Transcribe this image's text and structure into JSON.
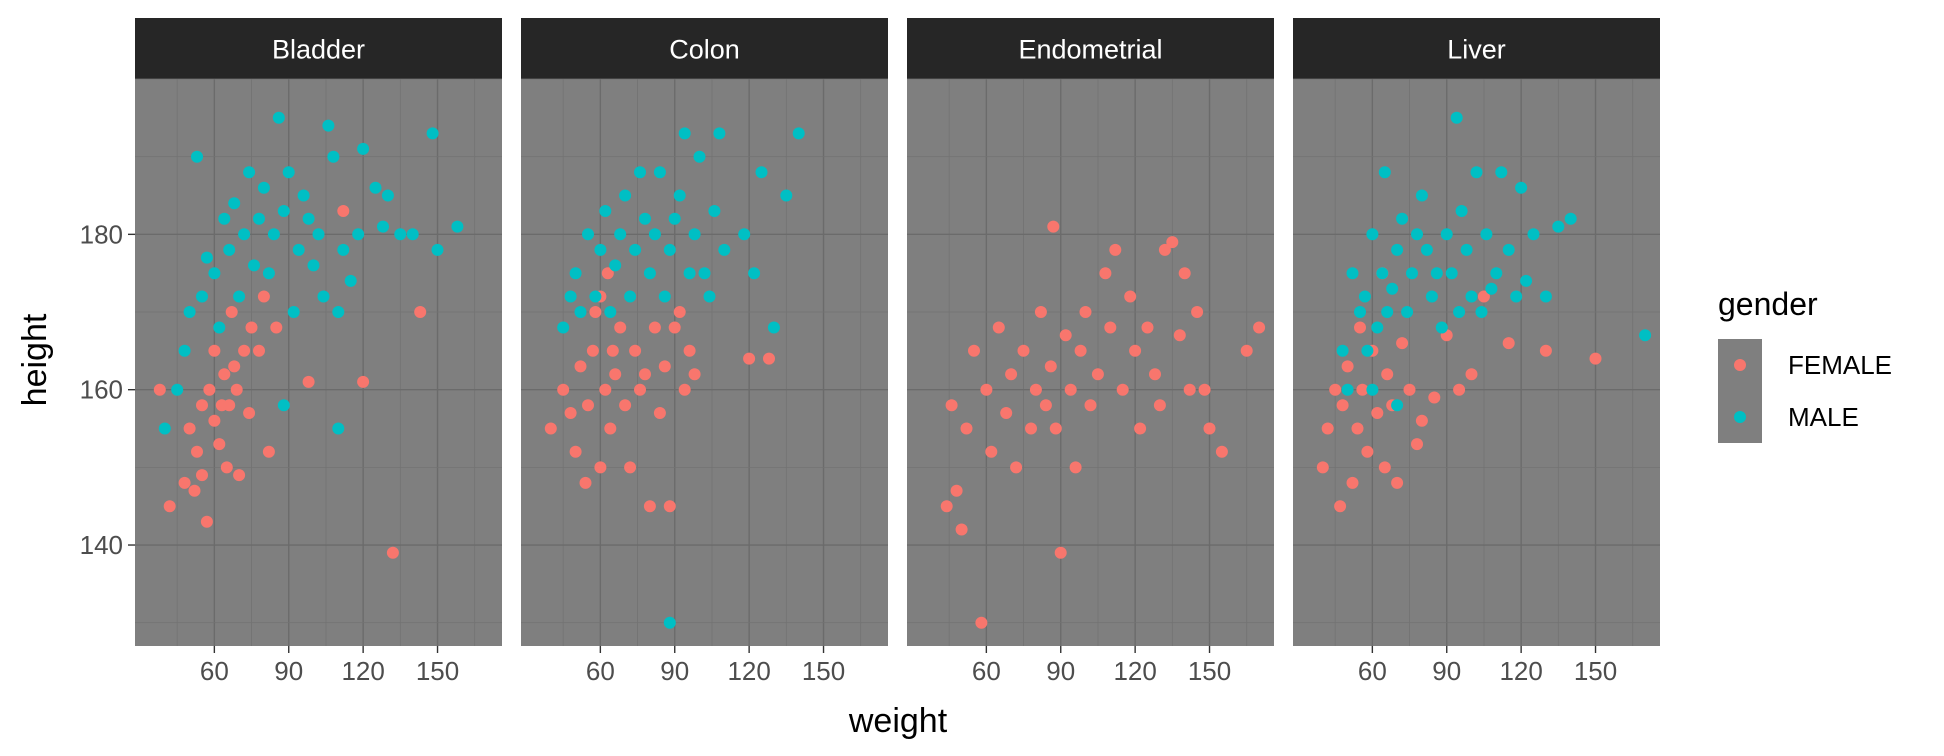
{
  "chart_data": {
    "type": "scatter",
    "facets": [
      "Bladder",
      "Colon",
      "Endometrial",
      "Liver"
    ],
    "xlabel": "weight",
    "ylabel": "height",
    "x_ticks": [
      60,
      90,
      120,
      150
    ],
    "y_ticks": [
      140,
      160,
      180
    ],
    "xlim": [
      28,
      176
    ],
    "ylim": [
      127,
      200
    ],
    "grid": true,
    "legend": {
      "title": "gender",
      "position": "right",
      "entries": [
        {
          "label": "FEMALE",
          "color": "#F8766D"
        },
        {
          "label": "MALE",
          "color": "#00BFC4"
        }
      ]
    },
    "series": [
      {
        "name": "FEMALE",
        "color": "#F8766D",
        "points": {
          "Bladder": [
            [
              38,
              160
            ],
            [
              42,
              145
            ],
            [
              48,
              148
            ],
            [
              50,
              155
            ],
            [
              52,
              147
            ],
            [
              53,
              152
            ],
            [
              55,
              158
            ],
            [
              55,
              149
            ],
            [
              57,
              143
            ],
            [
              58,
              160
            ],
            [
              60,
              156
            ],
            [
              60,
              165
            ],
            [
              62,
              153
            ],
            [
              63,
              158
            ],
            [
              64,
              162
            ],
            [
              65,
              150
            ],
            [
              66,
              158
            ],
            [
              67,
              170
            ],
            [
              68,
              163
            ],
            [
              69,
              160
            ],
            [
              70,
              149
            ],
            [
              72,
              165
            ],
            [
              74,
              157
            ],
            [
              75,
              168
            ],
            [
              78,
              165
            ],
            [
              80,
              172
            ],
            [
              82,
              152
            ],
            [
              85,
              168
            ],
            [
              98,
              161
            ],
            [
              112,
              183
            ],
            [
              120,
              161
            ],
            [
              132,
              139
            ],
            [
              143,
              170
            ]
          ],
          "Colon": [
            [
              40,
              155
            ],
            [
              45,
              160
            ],
            [
              48,
              157
            ],
            [
              50,
              152
            ],
            [
              52,
              163
            ],
            [
              54,
              148
            ],
            [
              55,
              158
            ],
            [
              57,
              165
            ],
            [
              58,
              170
            ],
            [
              60,
              150
            ],
            [
              60,
              172
            ],
            [
              62,
              160
            ],
            [
              63,
              175
            ],
            [
              64,
              155
            ],
            [
              65,
              165
            ],
            [
              66,
              162
            ],
            [
              68,
              168
            ],
            [
              70,
              158
            ],
            [
              72,
              150
            ],
            [
              74,
              165
            ],
            [
              76,
              160
            ],
            [
              78,
              162
            ],
            [
              80,
              145
            ],
            [
              82,
              168
            ],
            [
              84,
              157
            ],
            [
              86,
              163
            ],
            [
              88,
              145
            ],
            [
              90,
              168
            ],
            [
              92,
              170
            ],
            [
              94,
              160
            ],
            [
              96,
              165
            ],
            [
              98,
              162
            ],
            [
              120,
              164
            ],
            [
              128,
              164
            ]
          ],
          "Endometrial": [
            [
              44,
              145
            ],
            [
              46,
              158
            ],
            [
              48,
              147
            ],
            [
              50,
              142
            ],
            [
              52,
              155
            ],
            [
              55,
              165
            ],
            [
              58,
              130
            ],
            [
              60,
              160
            ],
            [
              62,
              152
            ],
            [
              65,
              168
            ],
            [
              68,
              157
            ],
            [
              70,
              162
            ],
            [
              72,
              150
            ],
            [
              75,
              165
            ],
            [
              78,
              155
            ],
            [
              80,
              160
            ],
            [
              82,
              170
            ],
            [
              84,
              158
            ],
            [
              86,
              163
            ],
            [
              87,
              181
            ],
            [
              88,
              155
            ],
            [
              90,
              139
            ],
            [
              92,
              167
            ],
            [
              94,
              160
            ],
            [
              96,
              150
            ],
            [
              98,
              165
            ],
            [
              100,
              170
            ],
            [
              102,
              158
            ],
            [
              105,
              162
            ],
            [
              108,
              175
            ],
            [
              110,
              168
            ],
            [
              112,
              178
            ],
            [
              115,
              160
            ],
            [
              118,
              172
            ],
            [
              120,
              165
            ],
            [
              122,
              155
            ],
            [
              125,
              168
            ],
            [
              128,
              162
            ],
            [
              130,
              158
            ],
            [
              132,
              178
            ],
            [
              135,
              179
            ],
            [
              138,
              167
            ],
            [
              140,
              175
            ],
            [
              142,
              160
            ],
            [
              145,
              170
            ],
            [
              148,
              160
            ],
            [
              150,
              155
            ],
            [
              155,
              152
            ],
            [
              165,
              165
            ],
            [
              170,
              168
            ]
          ],
          "Liver": [
            [
              40,
              150
            ],
            [
              42,
              155
            ],
            [
              45,
              160
            ],
            [
              47,
              145
            ],
            [
              48,
              158
            ],
            [
              50,
              163
            ],
            [
              52,
              148
            ],
            [
              54,
              155
            ],
            [
              55,
              168
            ],
            [
              56,
              160
            ],
            [
              58,
              152
            ],
            [
              60,
              165
            ],
            [
              62,
              157
            ],
            [
              64,
              175
            ],
            [
              65,
              150
            ],
            [
              66,
              162
            ],
            [
              68,
              158
            ],
            [
              70,
              148
            ],
            [
              72,
              166
            ],
            [
              75,
              160
            ],
            [
              78,
              153
            ],
            [
              80,
              156
            ],
            [
              85,
              159
            ],
            [
              90,
              167
            ],
            [
              95,
              160
            ],
            [
              100,
              162
            ],
            [
              105,
              172
            ],
            [
              115,
              166
            ],
            [
              130,
              165
            ],
            [
              150,
              164
            ]
          ]
        }
      },
      {
        "name": "MALE",
        "color": "#00BFC4",
        "points": {
          "Bladder": [
            [
              40,
              155
            ],
            [
              45,
              160
            ],
            [
              48,
              165
            ],
            [
              50,
              170
            ],
            [
              53,
              190
            ],
            [
              55,
              172
            ],
            [
              57,
              177
            ],
            [
              60,
              175
            ],
            [
              62,
              168
            ],
            [
              64,
              182
            ],
            [
              66,
              178
            ],
            [
              68,
              184
            ],
            [
              70,
              172
            ],
            [
              72,
              180
            ],
            [
              74,
              188
            ],
            [
              76,
              176
            ],
            [
              78,
              182
            ],
            [
              80,
              186
            ],
            [
              82,
              175
            ],
            [
              84,
              180
            ],
            [
              86,
              195
            ],
            [
              88,
              183
            ],
            [
              90,
              188
            ],
            [
              92,
              170
            ],
            [
              94,
              178
            ],
            [
              96,
              185
            ],
            [
              98,
              182
            ],
            [
              100,
              176
            ],
            [
              102,
              180
            ],
            [
              104,
              172
            ],
            [
              106,
              194
            ],
            [
              108,
              190
            ],
            [
              110,
              170
            ],
            [
              112,
              178
            ],
            [
              115,
              174
            ],
            [
              118,
              180
            ],
            [
              120,
              191
            ],
            [
              125,
              186
            ],
            [
              128,
              181
            ],
            [
              130,
              185
            ],
            [
              135,
              180
            ],
            [
              140,
              180
            ],
            [
              148,
              193
            ],
            [
              150,
              178
            ],
            [
              158,
              181
            ],
            [
              88,
              158
            ],
            [
              110,
              155
            ]
          ],
          "Colon": [
            [
              45,
              168
            ],
            [
              48,
              172
            ],
            [
              50,
              175
            ],
            [
              52,
              170
            ],
            [
              55,
              180
            ],
            [
              58,
              172
            ],
            [
              60,
              178
            ],
            [
              62,
              183
            ],
            [
              64,
              170
            ],
            [
              66,
              176
            ],
            [
              68,
              180
            ],
            [
              70,
              185
            ],
            [
              72,
              172
            ],
            [
              74,
              178
            ],
            [
              76,
              188
            ],
            [
              78,
              182
            ],
            [
              80,
              175
            ],
            [
              82,
              180
            ],
            [
              84,
              188
            ],
            [
              86,
              172
            ],
            [
              88,
              178
            ],
            [
              90,
              182
            ],
            [
              92,
              185
            ],
            [
              94,
              193
            ],
            [
              96,
              175
            ],
            [
              98,
              180
            ],
            [
              100,
              190
            ],
            [
              102,
              175
            ],
            [
              104,
              172
            ],
            [
              106,
              183
            ],
            [
              108,
              193
            ],
            [
              110,
              178
            ],
            [
              118,
              180
            ],
            [
              122,
              175
            ],
            [
              125,
              188
            ],
            [
              130,
              168
            ],
            [
              135,
              185
            ],
            [
              140,
              193
            ],
            [
              88,
              130
            ]
          ],
          "Endometrial": [],
          "Liver": [
            [
              48,
              165
            ],
            [
              50,
              160
            ],
            [
              52,
              175
            ],
            [
              55,
              170
            ],
            [
              57,
              172
            ],
            [
              58,
              165
            ],
            [
              60,
              180
            ],
            [
              62,
              168
            ],
            [
              64,
              175
            ],
            [
              65,
              188
            ],
            [
              66,
              170
            ],
            [
              68,
              173
            ],
            [
              70,
              178
            ],
            [
              72,
              182
            ],
            [
              74,
              170
            ],
            [
              76,
              175
            ],
            [
              78,
              180
            ],
            [
              80,
              185
            ],
            [
              82,
              178
            ],
            [
              84,
              172
            ],
            [
              86,
              175
            ],
            [
              88,
              168
            ],
            [
              90,
              180
            ],
            [
              92,
              175
            ],
            [
              94,
              195
            ],
            [
              95,
              170
            ],
            [
              96,
              183
            ],
            [
              98,
              178
            ],
            [
              100,
              172
            ],
            [
              102,
              188
            ],
            [
              104,
              170
            ],
            [
              106,
              180
            ],
            [
              108,
              173
            ],
            [
              110,
              175
            ],
            [
              112,
              188
            ],
            [
              115,
              178
            ],
            [
              118,
              172
            ],
            [
              120,
              186
            ],
            [
              122,
              174
            ],
            [
              125,
              180
            ],
            [
              130,
              172
            ],
            [
              135,
              181
            ],
            [
              140,
              182
            ],
            [
              170,
              167
            ],
            [
              60,
              160
            ],
            [
              70,
              158
            ]
          ]
        }
      }
    ]
  }
}
